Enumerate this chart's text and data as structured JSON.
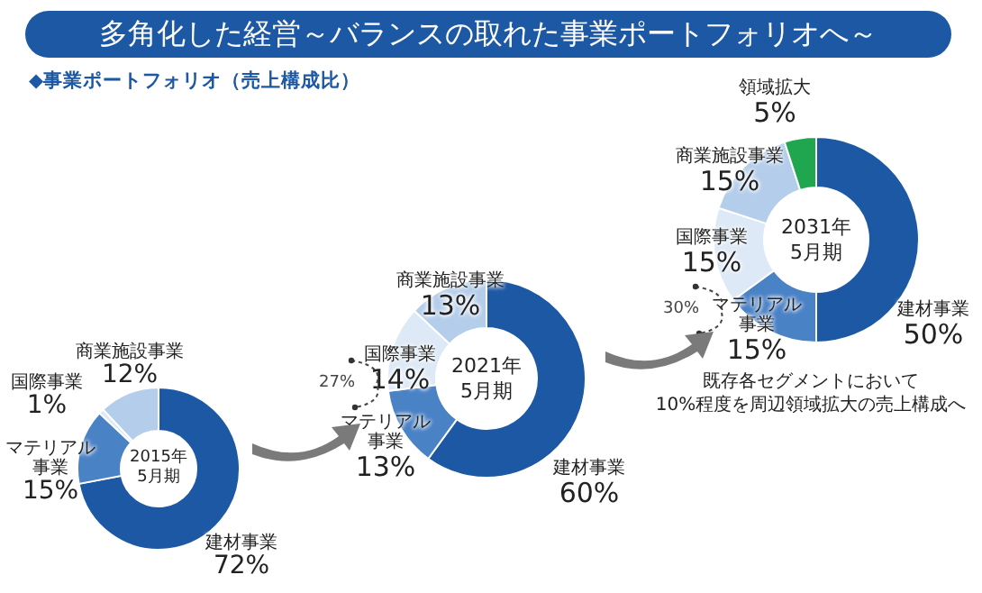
{
  "chart_data": [
    {
      "type": "donut",
      "title": "多角化した経営～バランスの取れた事業ポートフォリオへ～",
      "subtitle": "◆事業ポートフォリオ（売上構成比）",
      "categories": [
        "建材事業",
        "マテリアル事業",
        "国際事業",
        "商業施設事業"
      ],
      "values": [
        72,
        15,
        1,
        12
      ],
      "value_labels": [
        "72%",
        "15%",
        "1%",
        "12%"
      ],
      "colors": [
        "#1c58a4",
        "#4a82c6",
        "#dde9f6",
        "#b4cdea"
      ],
      "annotations": [
        "2015年\n5月期"
      ]
    },
    {
      "type": "donut",
      "categories": [
        "建材事業",
        "マテリアル事業",
        "国際事業",
        "商業施設事業"
      ],
      "values": [
        60,
        13,
        14,
        13
      ],
      "value_labels": [
        "60%",
        "13%",
        "14%",
        "13%"
      ],
      "colors": [
        "#1c58a4",
        "#4a82c6",
        "#dde9f6",
        "#b4cdea"
      ],
      "annotations": [
        "2021年\n5月期",
        "27%"
      ]
    },
    {
      "type": "donut",
      "categories": [
        "建材事業",
        "マテリアル事業",
        "国際事業",
        "商業施設事業",
        "領域拡大"
      ],
      "values": [
        50,
        15,
        15,
        15,
        5
      ],
      "value_labels": [
        "50%",
        "15%",
        "15%",
        "15%",
        "5%"
      ],
      "colors": [
        "#1c58a4",
        "#4a82c6",
        "#dde9f6",
        "#b4cdea",
        "#1fa64e"
      ],
      "annotations": [
        "2031年\n5月期",
        "30%",
        "既存各セグメントにおいて\n10%程度を周辺領域拡大の売上構成へ"
      ]
    }
  ]
}
